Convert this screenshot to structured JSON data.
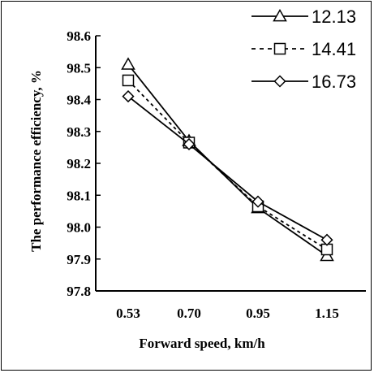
{
  "chart_data": {
    "type": "line",
    "xlabel": "Forward speed, km/h",
    "ylabel": "The performance efficiency, %",
    "categories": [
      "0.53",
      "0.70",
      "0.95",
      "1.15"
    ],
    "ylim": [
      97.8,
      98.6
    ],
    "yticks": [
      "97.8",
      "97.9",
      "98.0",
      "98.1",
      "98.2",
      "98.3",
      "98.4",
      "98.5",
      "98.6"
    ],
    "grid": false,
    "legend_position": "top-right",
    "series": [
      {
        "name": "12.13",
        "marker": "triangle",
        "line_style": "solid",
        "values": [
          98.51,
          98.27,
          98.06,
          97.91
        ]
      },
      {
        "name": "14.41",
        "marker": "square",
        "line_style": "dashed",
        "values": [
          98.46,
          98.265,
          98.065,
          97.93
        ]
      },
      {
        "name": "16.73",
        "marker": "diamond",
        "line_style": "solid",
        "values": [
          98.41,
          98.26,
          98.08,
          97.96
        ]
      }
    ],
    "colors": {
      "line": "#000000",
      "marker_fill": "#ffffff"
    }
  }
}
